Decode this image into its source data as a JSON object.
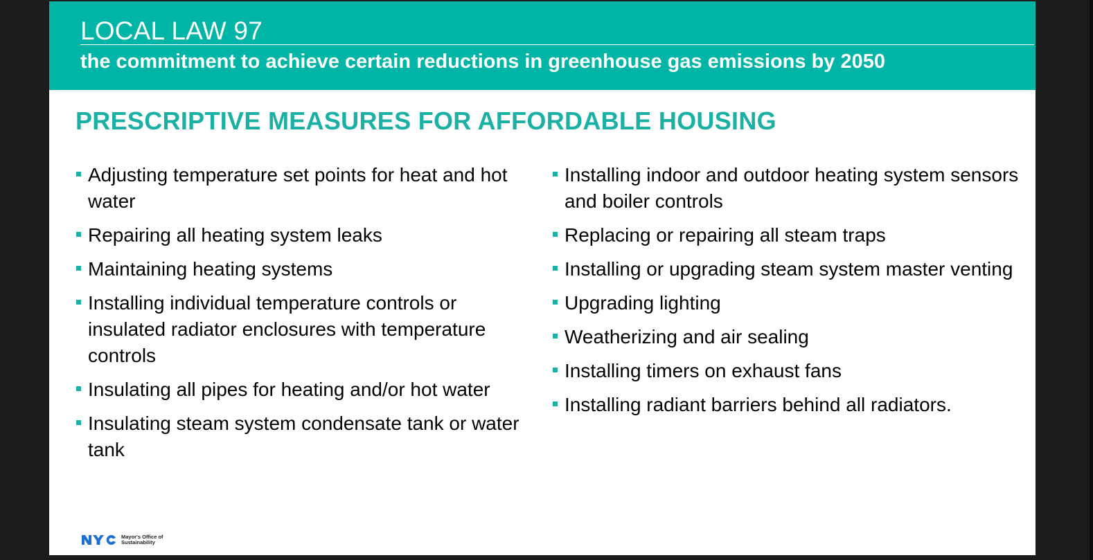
{
  "banner": {
    "title": "LOCAL LAW 97",
    "subtitle": "the commitment to achieve certain reductions in greenhouse gas emissions by 2050"
  },
  "heading": "PRESCRIPTIVE MEASURES FOR AFFORDABLE HOUSING",
  "left_items": [
    "Adjusting temperature set points for heat and hot water",
    "Repairing all heating system leaks",
    "Maintaining heating systems",
    "Installing individual temperature controls or insulated radiator enclosures with temperature controls",
    "Insulating all pipes for heating and/or hot water",
    "Insulating steam system condensate tank or water tank"
  ],
  "right_items": [
    "Installing indoor and outdoor heating system sensors and boiler controls",
    "Replacing or repairing all steam traps",
    "Installing or upgrading steam system master venting",
    "Upgrading lighting",
    "Weatherizing and air sealing",
    "Installing timers on exhaust fans",
    "Installing radiant barriers behind all radiators."
  ],
  "logo": {
    "mark": "NYC",
    "line1": "Mayor's Office of",
    "line2": "Sustainability"
  },
  "colors": {
    "banner": "#00b5a5",
    "accent": "#1ab0a4",
    "logo_blue": "#1f6fd1"
  },
  "icons": {
    "bullet": "square-bullet",
    "logo": "nyc-logo"
  }
}
